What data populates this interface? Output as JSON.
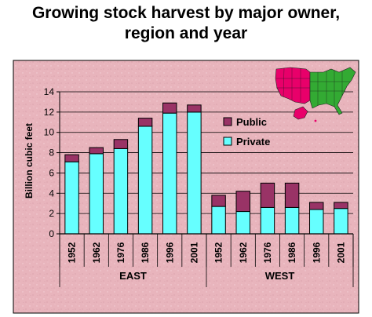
{
  "chart_data": {
    "type": "bar",
    "stacked": true,
    "title_lines": [
      "Growing stock harvest by major owner,",
      "region and year"
    ],
    "ylabel": "Billion cubic feet",
    "xlabel": "",
    "ylim": [
      0,
      14
    ],
    "yticks": [
      0,
      2,
      4,
      6,
      8,
      10,
      12,
      14
    ],
    "grid": true,
    "legend_position": "right, inside plot area",
    "groups": [
      {
        "name": "EAST",
        "categories": [
          "1952",
          "1962",
          "1976",
          "1986",
          "1996",
          "2001"
        ]
      },
      {
        "name": "WEST",
        "categories": [
          "1952",
          "1962",
          "1976",
          "1986",
          "1996",
          "2001"
        ]
      }
    ],
    "series": [
      {
        "name": "Private",
        "color": "#66ffff",
        "values": [
          7.1,
          7.9,
          8.4,
          10.6,
          11.9,
          12.0,
          2.7,
          2.2,
          2.6,
          2.6,
          2.4,
          2.5
        ]
      },
      {
        "name": "Public",
        "color": "#993366",
        "values": [
          0.7,
          0.6,
          0.9,
          0.8,
          1.0,
          0.7,
          1.1,
          2.0,
          2.4,
          2.4,
          0.7,
          0.6
        ]
      }
    ],
    "legend_order": [
      "Public",
      "Private"
    ],
    "plot_background": "#e8b4bc",
    "map_colors": {
      "west": "#e8006a",
      "east": "#33aa33"
    }
  }
}
